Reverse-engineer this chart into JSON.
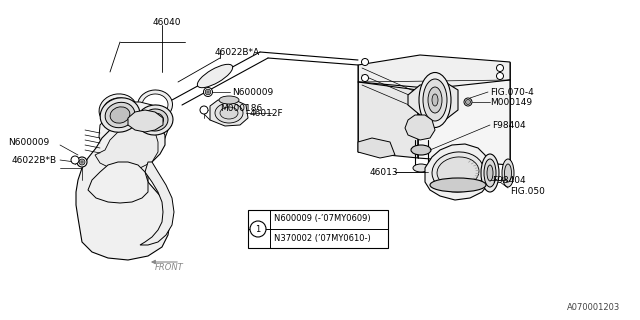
{
  "bg_color": "#ffffff",
  "lc": "#000000",
  "gray": "#cccccc",
  "diagram_number": "A070001203",
  "note_line1": "N600009 (-’07MY0609)",
  "note_line2": "N370002 (’07MY0610-)"
}
